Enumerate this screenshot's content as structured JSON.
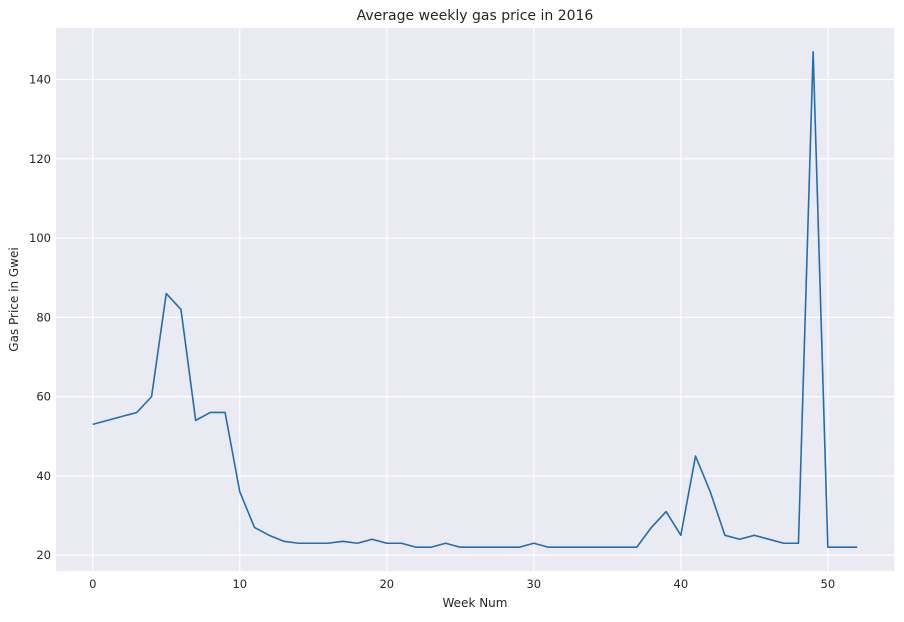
{
  "chart_data": {
    "type": "line",
    "title": "Average weekly gas price in 2016",
    "xlabel": "Week Num",
    "ylabel": "Gas Price in Gwei",
    "xlim": [
      -2.5,
      54.5
    ],
    "ylim": [
      16,
      153
    ],
    "xticks": [
      0,
      10,
      20,
      30,
      40,
      50
    ],
    "yticks": [
      20,
      40,
      60,
      80,
      100,
      120,
      140
    ],
    "grid": true,
    "legend": "none",
    "colors": {
      "line": "#1f6fb0",
      "plot_bg": "#eaeaf2",
      "grid": "#ffffff",
      "text": "#262626"
    },
    "series": [
      {
        "x": [
          0,
          3,
          4,
          5,
          6,
          7,
          8,
          9,
          10,
          11,
          12,
          13,
          14,
          15,
          16,
          17,
          18,
          19,
          20,
          21,
          22,
          23,
          24,
          25,
          26,
          27,
          28,
          29,
          30,
          31,
          32,
          33,
          34,
          35,
          36,
          37,
          38,
          39,
          40,
          41,
          42,
          43,
          44,
          45,
          46,
          47,
          48,
          49,
          50,
          51,
          52
        ],
        "y": [
          53,
          56,
          60,
          86,
          82,
          54,
          56,
          56,
          36,
          27,
          25,
          23.5,
          23,
          23,
          23,
          23.5,
          23,
          24,
          23,
          23,
          22,
          22,
          23,
          22,
          22,
          22,
          22,
          22,
          23,
          22,
          22,
          22,
          22,
          22,
          22,
          22,
          27,
          31,
          25,
          45,
          36,
          25,
          24,
          25,
          24,
          23,
          23,
          147,
          22,
          22,
          22
        ]
      }
    ]
  }
}
